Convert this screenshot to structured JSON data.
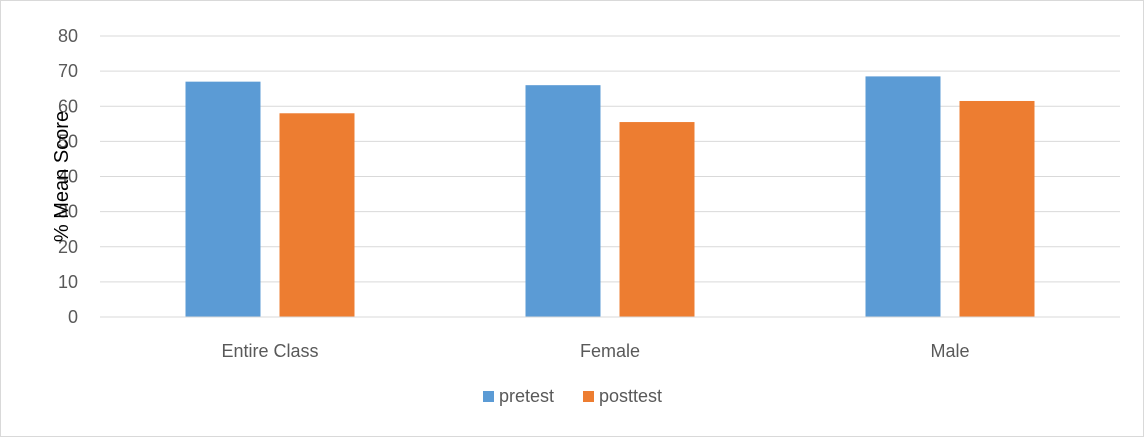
{
  "chart_data": {
    "type": "bar",
    "title": "",
    "xlabel": "",
    "ylabel": "% Mean Score",
    "categories": [
      "Entire Class",
      "Female",
      "Male"
    ],
    "series": [
      {
        "name": "pretest",
        "values": [
          67,
          66,
          68.5
        ],
        "color": "#5b9bd5"
      },
      {
        "name": "posttest",
        "values": [
          58,
          55.5,
          61.5
        ],
        "color": "#ed7d31"
      }
    ],
    "ylim": [
      0,
      80
    ],
    "yticks": [
      0,
      10,
      20,
      30,
      40,
      50,
      60,
      70,
      80
    ],
    "grid": true,
    "legend_position": "bottom"
  },
  "colors": {
    "grid": "#d9d9d9",
    "axis_text": "#595959",
    "border": "#d9d9d9"
  }
}
